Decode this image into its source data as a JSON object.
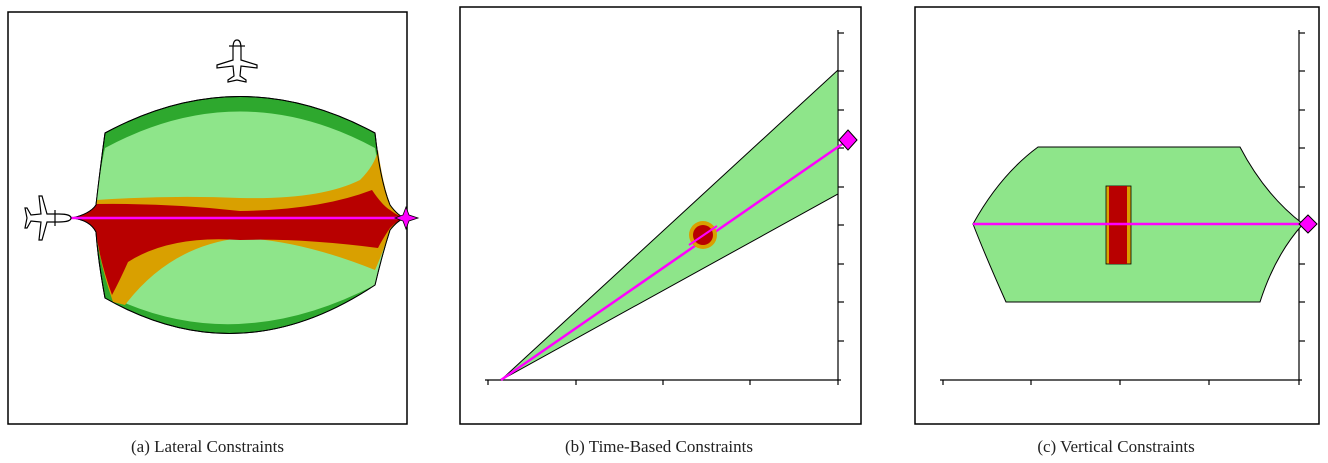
{
  "colors": {
    "frame": "#000000",
    "safe_green": "#8ee58a",
    "dark_green": "#2ea82e",
    "amber": "#d9a000",
    "danger_red": "#b80000",
    "route_magenta": "#ff00ff",
    "diamond_magenta": "#ff00ff"
  },
  "icons": {
    "aircraft_top": "airplane-icon",
    "aircraft_left": "airplane-icon",
    "waypoint_star": "star-icon",
    "waypoint_diamond": "diamond-icon"
  },
  "panels": [
    {
      "id": "lateral",
      "caption": "(a) Lateral Constraints"
    },
    {
      "id": "time",
      "caption": "(b) Time-Based Constraints"
    },
    {
      "id": "vertical",
      "caption": "(c) Vertical Constraints"
    }
  ]
}
